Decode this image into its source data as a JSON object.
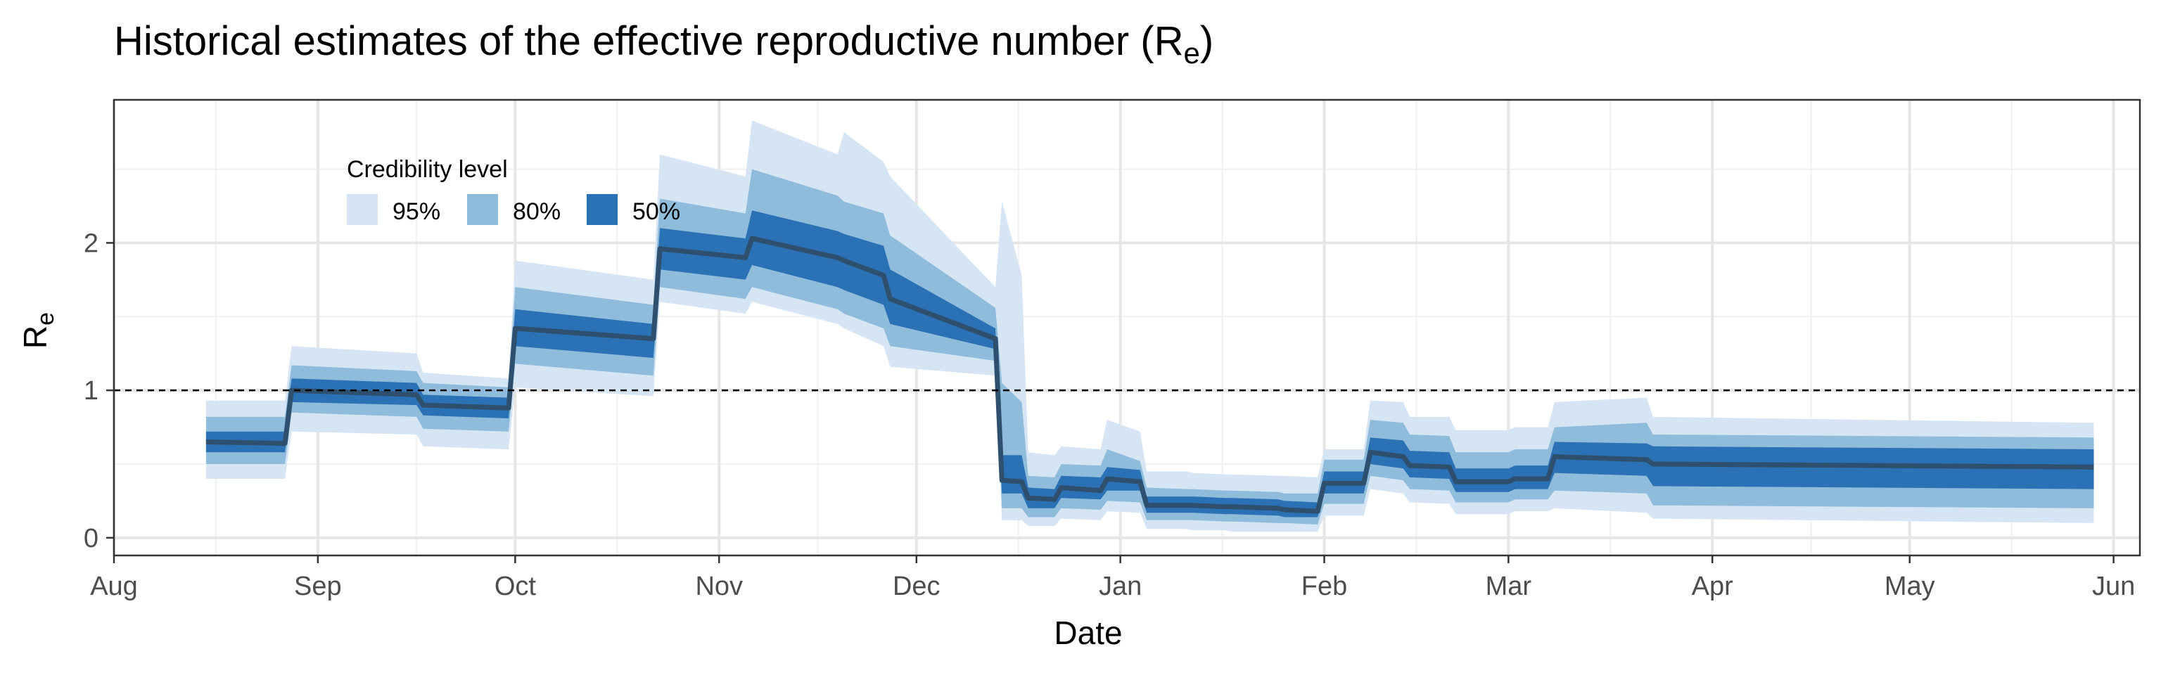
{
  "chart_data": {
    "type": "area",
    "title": "Historical estimates of the effective reproductive number (R",
    "title_subscript": "e",
    "title_suffix": ")",
    "xlabel": "Date",
    "ylabel": "R",
    "ylabel_subscript": "e",
    "xlim": [
      "2020-08-01",
      "2021-06-05"
    ],
    "ylim": [
      -0.12,
      2.97
    ],
    "x_ticks": [
      {
        "date": "2020-08-01",
        "label": "Aug"
      },
      {
        "date": "2020-09-01",
        "label": "Sep"
      },
      {
        "date": "2020-10-01",
        "label": "Oct"
      },
      {
        "date": "2020-11-01",
        "label": "Nov"
      },
      {
        "date": "2020-12-01",
        "label": "Dec"
      },
      {
        "date": "2021-01-01",
        "label": "Jan"
      },
      {
        "date": "2021-02-01",
        "label": "Feb"
      },
      {
        "date": "2021-03-01",
        "label": "Mar"
      },
      {
        "date": "2021-04-01",
        "label": "Apr"
      },
      {
        "date": "2021-05-01",
        "label": "May"
      },
      {
        "date": "2021-06-01",
        "label": "Jun"
      }
    ],
    "y_ticks": [
      {
        "value": 0,
        "label": "0"
      },
      {
        "value": 1,
        "label": "1"
      },
      {
        "value": 2,
        "label": "2"
      }
    ],
    "reference_line": {
      "y": 1,
      "style": "dashed"
    },
    "grid": true,
    "legend": {
      "title": "Credibility level",
      "placement": "top-left inside plot",
      "items": [
        {
          "label": "95%",
          "color": "#d6e5f4"
        },
        {
          "label": "80%",
          "color": "#8fbcdb"
        },
        {
          "label": "50%",
          "color": "#2b71b5"
        }
      ]
    },
    "median_color": "#2f4f6f",
    "series": {
      "dates": [
        "2020-08-15",
        "2020-08-27",
        "2020-08-28",
        "2020-09-16",
        "2020-09-17",
        "2020-09-30",
        "2020-10-01",
        "2020-10-22",
        "2020-10-23",
        "2020-11-05",
        "2020-11-06",
        "2020-11-19",
        "2020-11-20",
        "2020-11-26",
        "2020-11-27",
        "2020-12-13",
        "2020-12-14",
        "2020-12-17",
        "2020-12-18",
        "2020-12-22",
        "2020-12-23",
        "2020-12-29",
        "2020-12-30",
        "2021-01-04",
        "2021-01-05",
        "2021-01-11",
        "2021-01-12",
        "2021-01-17",
        "2021-01-18",
        "2021-01-25",
        "2021-01-26",
        "2021-01-31",
        "2021-02-01",
        "2021-02-07",
        "2021-02-08",
        "2021-02-13",
        "2021-02-14",
        "2021-02-20",
        "2021-02-21",
        "2021-03-01",
        "2021-03-02",
        "2021-03-07",
        "2021-03-08",
        "2021-03-22",
        "2021-03-23",
        "2021-05-29"
      ],
      "median": [
        0.65,
        0.64,
        1.0,
        0.97,
        0.9,
        0.88,
        1.42,
        1.35,
        1.96,
        1.9,
        2.03,
        1.9,
        1.88,
        1.78,
        1.62,
        1.35,
        0.39,
        0.38,
        0.27,
        0.26,
        0.34,
        0.32,
        0.4,
        0.38,
        0.22,
        0.22,
        0.22,
        0.21,
        0.21,
        0.2,
        0.19,
        0.18,
        0.37,
        0.37,
        0.58,
        0.55,
        0.49,
        0.48,
        0.38,
        0.38,
        0.4,
        0.4,
        0.55,
        0.53,
        0.5,
        0.48
      ],
      "lo50": [
        0.58,
        0.58,
        0.92,
        0.9,
        0.83,
        0.81,
        1.3,
        1.22,
        1.82,
        1.75,
        1.85,
        1.7,
        1.68,
        1.58,
        1.45,
        1.28,
        0.3,
        0.3,
        0.2,
        0.2,
        0.27,
        0.26,
        0.32,
        0.32,
        0.17,
        0.17,
        0.17,
        0.16,
        0.16,
        0.15,
        0.14,
        0.14,
        0.3,
        0.3,
        0.5,
        0.47,
        0.41,
        0.4,
        0.31,
        0.31,
        0.33,
        0.33,
        0.44,
        0.42,
        0.35,
        0.33
      ],
      "hi50": [
        0.72,
        0.72,
        1.08,
        1.05,
        0.97,
        0.95,
        1.55,
        1.45,
        2.1,
        2.03,
        2.22,
        2.08,
        2.06,
        1.98,
        1.82,
        1.42,
        0.56,
        0.56,
        0.34,
        0.33,
        0.42,
        0.41,
        0.48,
        0.46,
        0.28,
        0.28,
        0.28,
        0.27,
        0.27,
        0.26,
        0.25,
        0.24,
        0.45,
        0.45,
        0.68,
        0.66,
        0.59,
        0.58,
        0.47,
        0.47,
        0.49,
        0.49,
        0.65,
        0.64,
        0.62,
        0.6
      ],
      "lo80": [
        0.5,
        0.5,
        0.85,
        0.82,
        0.74,
        0.72,
        1.18,
        1.1,
        1.7,
        1.62,
        1.7,
        1.55,
        1.52,
        1.42,
        1.3,
        1.2,
        0.2,
        0.2,
        0.14,
        0.14,
        0.2,
        0.19,
        0.25,
        0.24,
        0.12,
        0.12,
        0.12,
        0.11,
        0.11,
        0.1,
        0.1,
        0.09,
        0.23,
        0.23,
        0.42,
        0.39,
        0.33,
        0.32,
        0.24,
        0.24,
        0.26,
        0.26,
        0.32,
        0.3,
        0.22,
        0.2
      ],
      "hi80": [
        0.82,
        0.82,
        1.17,
        1.13,
        1.05,
        1.02,
        1.7,
        1.58,
        2.3,
        2.2,
        2.5,
        2.32,
        2.28,
        2.2,
        2.05,
        1.56,
        1.05,
        0.92,
        0.42,
        0.41,
        0.5,
        0.49,
        0.6,
        0.52,
        0.34,
        0.33,
        0.33,
        0.32,
        0.32,
        0.31,
        0.3,
        0.3,
        0.53,
        0.53,
        0.8,
        0.78,
        0.7,
        0.69,
        0.58,
        0.58,
        0.6,
        0.6,
        0.75,
        0.78,
        0.7,
        0.68
      ],
      "lo95": [
        0.4,
        0.4,
        0.72,
        0.7,
        0.62,
        0.6,
        1.02,
        0.96,
        1.6,
        1.52,
        1.6,
        1.45,
        1.42,
        1.3,
        1.16,
        1.1,
        0.12,
        0.12,
        0.08,
        0.08,
        0.13,
        0.12,
        0.18,
        0.17,
        0.06,
        0.06,
        0.05,
        0.05,
        0.04,
        0.04,
        0.04,
        0.04,
        0.15,
        0.15,
        0.33,
        0.3,
        0.24,
        0.23,
        0.16,
        0.16,
        0.18,
        0.18,
        0.2,
        0.17,
        0.13,
        0.1
      ],
      "hi95": [
        0.93,
        0.93,
        1.3,
        1.25,
        1.12,
        1.08,
        1.88,
        1.75,
        2.6,
        2.45,
        2.83,
        2.6,
        2.75,
        2.55,
        2.45,
        1.7,
        2.28,
        1.78,
        0.58,
        0.56,
        0.62,
        0.6,
        0.8,
        0.72,
        0.45,
        0.45,
        0.44,
        0.43,
        0.43,
        0.42,
        0.42,
        0.41,
        0.6,
        0.6,
        0.93,
        0.92,
        0.82,
        0.82,
        0.73,
        0.73,
        0.75,
        0.75,
        0.92,
        0.95,
        0.82,
        0.78
      ]
    }
  }
}
